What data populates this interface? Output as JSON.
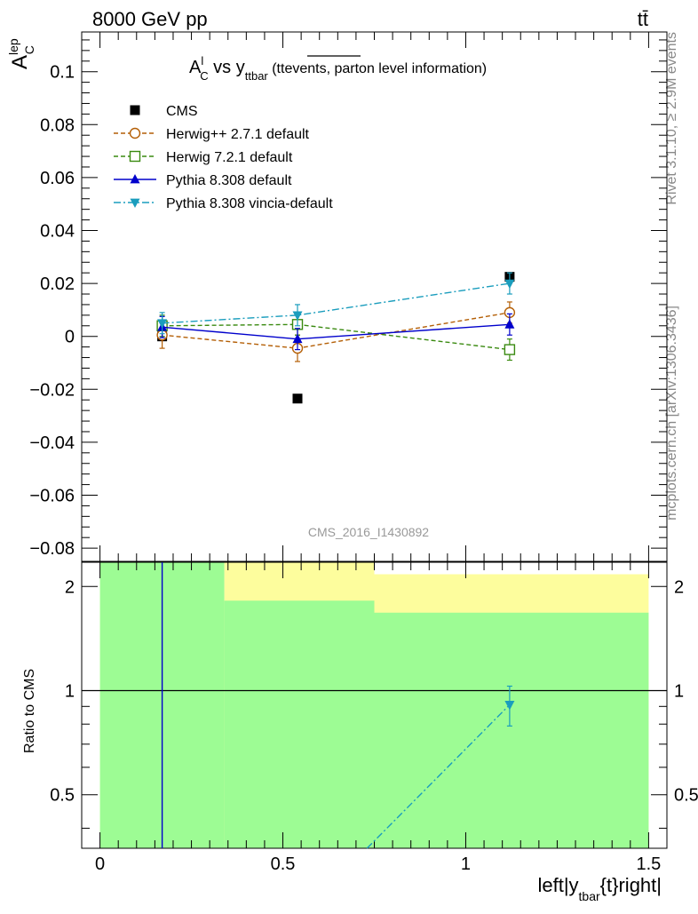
{
  "header": {
    "energy_label": "8000 GeV pp",
    "process_label": "tt̄",
    "side_label_top": "Rivet 3.1.10, ≥ 2.9M events",
    "side_label_bottom": "mcplots.cern.ch [arXiv:1306.3436]",
    "analysis_label": "CMS_2016_I1430892"
  },
  "title": {
    "main": "A",
    "main_sup": "l",
    "main_sub": "C",
    "vs": " vs y",
    "vs_sub": "ttbar",
    "paren_open": " (tt",
    "overline_text": "events,",
    "paren_rest": " parton level information)"
  },
  "y_axis_label": {
    "main": "A",
    "sup": "lep",
    "sub": "C"
  },
  "x_axis_label": {
    "pre": "left|y",
    "sub": "tbar",
    "post": "{t}right|"
  },
  "ratio_axis_label": "Ratio to CMS",
  "colors": {
    "cms": "#000000",
    "herwigpp": "#b45f06",
    "herwig7": "#3a8a10",
    "pythia": "#0000cc",
    "vincia": "#1a9dbd",
    "band_green": "#9dfc94",
    "band_yellow": "#fdfd9d"
  },
  "chart_data": {
    "type": "scatter",
    "main_panel": {
      "xlim": [
        -0.05,
        1.55
      ],
      "ylim": [
        -0.085,
        0.115
      ],
      "y_ticks": [
        -0.08,
        -0.06,
        -0.04,
        -0.02,
        0,
        0.02,
        0.04,
        0.06,
        0.08,
        0.1
      ],
      "y_tick_labels": [
        "−0.08",
        "−0.06",
        "−0.04",
        "−0.02",
        "0",
        "0.02",
        "0.04",
        "0.06",
        "0.08",
        "0.1"
      ],
      "series": [
        {
          "name": "CMS",
          "key": "cms",
          "marker": "square-filled",
          "line": "none",
          "x": [
            0.17,
            0.54,
            1.12
          ],
          "y": [
            0.0,
            -0.0235,
            0.0225
          ],
          "err": [
            0.0,
            0.0,
            0.0
          ]
        },
        {
          "name": "Herwig++ 2.7.1 default",
          "key": "herwigpp",
          "marker": "circle-open",
          "line": "dashed",
          "x": [
            0.17,
            0.54,
            1.12
          ],
          "y": [
            0.0005,
            -0.0045,
            0.009
          ],
          "err": [
            0.005,
            0.005,
            0.004
          ]
        },
        {
          "name": "Herwig 7.2.1 default",
          "key": "herwig7",
          "marker": "square-open",
          "line": "dashed",
          "x": [
            0.17,
            0.54,
            1.12
          ],
          "y": [
            0.004,
            0.0045,
            -0.005
          ],
          "err": [
            0.004,
            0.004,
            0.004
          ]
        },
        {
          "name": "Pythia 8.308 default",
          "key": "pythia",
          "marker": "triangle-up",
          "line": "solid",
          "x": [
            0.17,
            0.54,
            1.12
          ],
          "y": [
            0.0035,
            -0.001,
            0.0045
          ],
          "err": [
            0.004,
            0.004,
            0.004
          ]
        },
        {
          "name": "Pythia 8.308 vincia-default",
          "key": "vincia",
          "marker": "triangle-down",
          "line": "dashdot",
          "x": [
            0.17,
            0.54,
            1.12
          ],
          "y": [
            0.005,
            0.008,
            0.02
          ],
          "err": [
            0.004,
            0.004,
            0.004
          ]
        }
      ]
    },
    "ratio_panel": {
      "ylim": [
        0.35,
        2.35
      ],
      "log_scale": true,
      "y_ticks": [
        0.5,
        1,
        2
      ],
      "y_tick_labels": [
        "0.5",
        "1",
        "2"
      ],
      "reference_value": 1,
      "bands": [
        {
          "x0": 0.0,
          "x1": 0.34,
          "green_top": 2.35,
          "yellow_top": 2.35
        },
        {
          "x0": 0.34,
          "x1": 0.75,
          "green_top": 1.82,
          "yellow_top": 2.35
        },
        {
          "x0": 0.75,
          "x1": 1.5,
          "green_top": 1.68,
          "yellow_top": 2.17
        }
      ],
      "pythia_vertical_x": 0.17,
      "vincia_point": {
        "x": 1.12,
        "y": 0.91,
        "err_lo": 0.12,
        "err_hi": 0.12
      },
      "vincia_line_start": {
        "x": 0.73,
        "y": 0.35
      }
    },
    "x_ticks": [
      0,
      0.5,
      1,
      1.5
    ],
    "x_tick_labels": [
      "0",
      "0.5",
      "1",
      "1.5"
    ],
    "legend_position": "top-left"
  }
}
